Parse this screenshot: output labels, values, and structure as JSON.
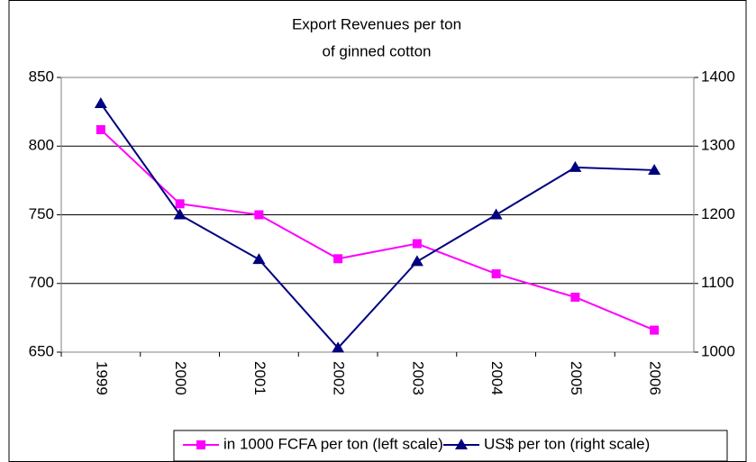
{
  "chart_data": {
    "type": "line",
    "title": [
      "Export Revenues per ton",
      "of ginned cotton"
    ],
    "categories": [
      "1999",
      "2000",
      "2001",
      "2002",
      "2003",
      "2004",
      "2005",
      "2006"
    ],
    "series": [
      {
        "name": "in 1000 FCFA per ton (left scale)",
        "color": "#ff00ff",
        "marker": "square",
        "axis": "y",
        "values": [
          812,
          758,
          750,
          718,
          729,
          707,
          690,
          666
        ]
      },
      {
        "name": "US$ per ton (right scale)",
        "color": "#000080",
        "marker": "triangle",
        "axis": "y2",
        "values": [
          1362,
          1200,
          1135,
          1006,
          1132,
          1200,
          1269,
          1265
        ]
      }
    ],
    "ylim": [
      650,
      850
    ],
    "yticks": [
      650,
      700,
      750,
      800,
      850
    ],
    "y2lim": [
      1000,
      1400
    ],
    "y2ticks": [
      1000,
      1100,
      1200,
      1300,
      1400
    ],
    "grid": true,
    "legend": "bottom"
  }
}
